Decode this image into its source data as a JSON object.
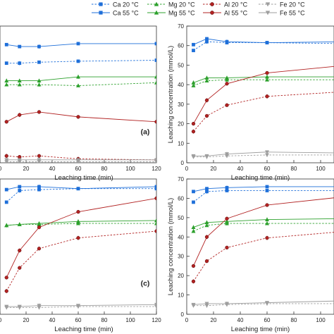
{
  "legend": [
    {
      "name": "Ca 20 °C",
      "marker": "square",
      "color": "#1e6fd9",
      "dash": true
    },
    {
      "name": "Ca 55 °C",
      "marker": "square",
      "color": "#1e6fd9",
      "dash": false
    },
    {
      "name": "Mg 20 °C",
      "marker": "triangle-up",
      "color": "#2ca02c",
      "dash": true
    },
    {
      "name": "Mg 55 °C",
      "marker": "triangle-up",
      "color": "#2ca02c",
      "dash": false
    },
    {
      "name": "Al 20 °C",
      "marker": "circle",
      "color": "#b22222",
      "dash": true
    },
    {
      "name": "Al 55 °C",
      "marker": "circle",
      "color": "#b22222",
      "dash": false
    },
    {
      "name": "Fe 20 °C",
      "marker": "triangle-down",
      "color": "#9e9e9e",
      "dash": true
    },
    {
      "name": "Fe 55 °C",
      "marker": "triangle-down",
      "color": "#9e9e9e",
      "dash": false
    }
  ],
  "chart_data": [
    {
      "type": "line",
      "panel_label": "(a)",
      "xlabel": "Leaching time (min)",
      "ylabel": "",
      "xlim": [
        0,
        120
      ],
      "ylim": [
        0,
        70
      ],
      "xticks": [
        0,
        20,
        40,
        60,
        80,
        100,
        120
      ],
      "yticks": [],
      "x": [
        5,
        15,
        30,
        60,
        120
      ],
      "series": [
        {
          "name": "Ca 55 °C",
          "values": [
            60.5,
            59.5,
            59.5,
            61,
            61
          ]
        },
        {
          "name": "Ca 20 °C",
          "values": [
            51,
            51,
            51.5,
            52,
            52.5
          ]
        },
        {
          "name": "Mg 55 °C",
          "values": [
            42,
            42,
            42,
            44,
            44
          ]
        },
        {
          "name": "Mg 20 °C",
          "values": [
            40,
            40,
            40,
            39.5,
            41
          ]
        },
        {
          "name": "Al 55 °C",
          "values": [
            21,
            24.5,
            26,
            23.5,
            21
          ]
        },
        {
          "name": "Al 20 °C",
          "values": [
            3.5,
            3,
            3.5,
            2,
            1.5
          ]
        },
        {
          "name": "Fe 55 °C",
          "values": [
            1.5,
            1.5,
            1.5,
            1.5,
            1.5
          ]
        },
        {
          "name": "Fe 20 °C",
          "values": [
            0.5,
            0.5,
            0.5,
            0.5,
            0.5
          ]
        }
      ]
    },
    {
      "type": "line",
      "panel_label": "",
      "xlabel": "Leaching time (min)",
      "ylabel": "Leaching concentration (mmol/L)",
      "xlim": [
        0,
        110
      ],
      "ylim": [
        0,
        70
      ],
      "xticks": [
        0,
        20,
        40,
        60,
        80,
        100
      ],
      "yticks": [
        0,
        10,
        20,
        30,
        40,
        50,
        60,
        70
      ],
      "x": [
        5,
        15,
        30,
        60,
        120
      ],
      "series": [
        {
          "name": "Ca 55 °C",
          "values": [
            60.5,
            63.5,
            62,
            61.5,
            62
          ]
        },
        {
          "name": "Ca 20 °C",
          "values": [
            57.5,
            62,
            61.5,
            61.5,
            61
          ]
        },
        {
          "name": "Mg 55 °C",
          "values": [
            41,
            43.5,
            43.5,
            44,
            44
          ]
        },
        {
          "name": "Mg 20 °C",
          "values": [
            39.5,
            42,
            42.5,
            42.5,
            42.5
          ]
        },
        {
          "name": "Al 55 °C",
          "values": [
            20,
            32,
            40.5,
            46,
            50
          ]
        },
        {
          "name": "Al 20 °C",
          "values": [
            16,
            24,
            29.5,
            34,
            36.5
          ]
        },
        {
          "name": "Fe 55 °C",
          "values": [
            3.5,
            3.5,
            4.5,
            5.5,
            5
          ]
        },
        {
          "name": "Fe 20 °C",
          "values": [
            3,
            3,
            3.5,
            4,
            4
          ]
        }
      ]
    },
    {
      "type": "line",
      "panel_label": "(c)",
      "xlabel": "Leaching time (min)",
      "ylabel": "",
      "xlim": [
        0,
        120
      ],
      "ylim": [
        0,
        70
      ],
      "xticks": [
        0,
        20,
        40,
        60,
        80,
        100,
        120
      ],
      "yticks": [],
      "x": [
        5,
        15,
        30,
        60,
        120
      ],
      "series": [
        {
          "name": "Ca 55 °C",
          "values": [
            64.5,
            66,
            66,
            65,
            66
          ]
        },
        {
          "name": "Ca 20 °C",
          "values": [
            58,
            64,
            64.5,
            65,
            65
          ]
        },
        {
          "name": "Mg 55 °C",
          "values": [
            46,
            46.5,
            47,
            48,
            48.5
          ]
        },
        {
          "name": "Mg 20 °C",
          "values": [
            46,
            46.5,
            46.5,
            47,
            47
          ]
        },
        {
          "name": "Al 55 °C",
          "values": [
            19,
            33,
            45,
            53,
            60
          ]
        },
        {
          "name": "Al 20 °C",
          "values": [
            12,
            24,
            34,
            39.5,
            43
          ]
        },
        {
          "name": "Fe 55 °C",
          "values": [
            4,
            4,
            4.5,
            4.5,
            5
          ]
        },
        {
          "name": "Fe 20 °C",
          "values": [
            3.5,
            3.5,
            3.5,
            4,
            4
          ]
        }
      ]
    },
    {
      "type": "line",
      "panel_label": "",
      "xlabel": "Leaching time (min)",
      "ylabel": "Leaching concentration (mmol/L)",
      "xlim": [
        0,
        110
      ],
      "ylim": [
        0,
        70
      ],
      "xticks": [
        0,
        20,
        40,
        60,
        80,
        100
      ],
      "yticks": [
        0,
        10,
        20,
        30,
        40,
        50,
        60,
        70
      ],
      "x": [
        5,
        15,
        30,
        60,
        120
      ],
      "series": [
        {
          "name": "Ca 55 °C",
          "values": [
            63.5,
            65,
            65.5,
            66,
            66
          ]
        },
        {
          "name": "Ca 20 °C",
          "values": [
            58,
            63.5,
            64,
            64,
            64
          ]
        },
        {
          "name": "Mg 55 °C",
          "values": [
            45,
            47.5,
            48,
            49,
            49.5
          ]
        },
        {
          "name": "Mg 20 °C",
          "values": [
            43,
            46,
            47,
            47,
            47
          ]
        },
        {
          "name": "Al 55 °C",
          "values": [
            25,
            40,
            49.5,
            56.5,
            61
          ]
        },
        {
          "name": "Al 20 °C",
          "values": [
            17,
            27.5,
            34.5,
            39.5,
            43
          ]
        },
        {
          "name": "Fe 55 °C",
          "values": [
            5,
            5.5,
            5.5,
            6,
            7
          ]
        },
        {
          "name": "Fe 20 °C",
          "values": [
            4.5,
            4.5,
            5,
            5.5,
            5.5
          ]
        }
      ]
    }
  ]
}
